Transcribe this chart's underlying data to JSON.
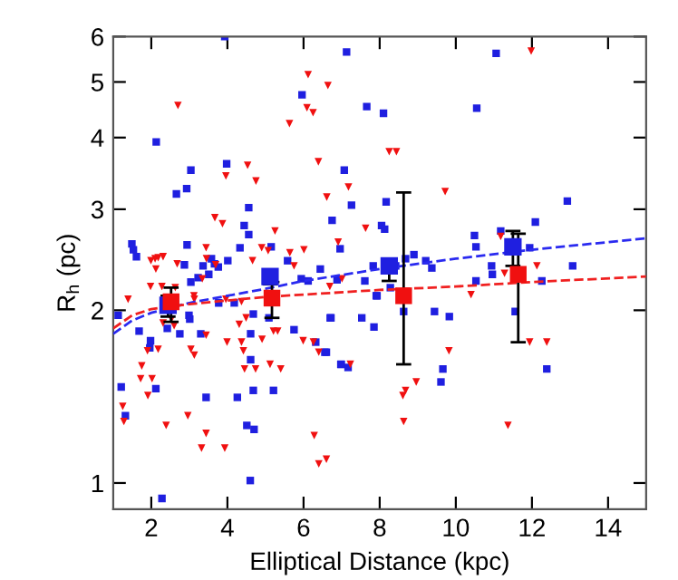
{
  "chart_data": {
    "type": "scatter",
    "xlabel": "Elliptical Distance (kpc)",
    "ylabel": "R$_{h}$ (pc)",
    "log": "y",
    "xlim": [
      1,
      15
    ],
    "ylim": [
      0.9,
      6
    ],
    "xticks": [
      2,
      4,
      6,
      8,
      10,
      12,
      14
    ],
    "yticks": [
      1,
      2,
      3,
      4,
      5,
      6
    ],
    "grid": false,
    "legend": false,
    "series": [
      {
        "marker": "square",
        "color": "#1f1fe0",
        "x": [
          3.93,
          2.13,
          3.04,
          2.66,
          2.93,
          3.98,
          4.56,
          4.44,
          4.56,
          1.49,
          1.53,
          1.61,
          2.94,
          4.01,
          4.33,
          5.15,
          2.87,
          3.36,
          3.58,
          3.66,
          3.76,
          3.51,
          3.23,
          3.04,
          5.96,
          5.58,
          6.12,
          6.44,
          6.96,
          7.07,
          6.75,
          7.13,
          5.94,
          11.06,
          7.66,
          8.1,
          10.55,
          7.26,
          8.17,
          12.93,
          8.05,
          8.13,
          10.49,
          10.53,
          11.18,
          12.09,
          11.94,
          8.9,
          9.21,
          9.37,
          8.68,
          8.42,
          7.83,
          10.94,
          13.07,
          10.96,
          6.88,
          7.61,
          10.53,
          12.26,
          8.28,
          7.91,
          6.72,
          7.53,
          7.85,
          9.44,
          9.83,
          8.63,
          11.56,
          7.93,
          6.6,
          6.98,
          7.17,
          9.66,
          9.61,
          12.39,
          1.13,
          1.68,
          1.98,
          1.96,
          2.42,
          2.75,
          2.99,
          3.01,
          3.3,
          1.21,
          1.32,
          2.12,
          3.44,
          4.26,
          4.68,
          4.61,
          4.61,
          4.68,
          5.21,
          4.51,
          4.7,
          4.6,
          2.28,
          5.75,
          6.32,
          6.56,
          6.7,
          6.99,
          3.77,
          4.18,
          5.09
        ],
        "values": [
          6.0,
          3.93,
          3.51,
          3.19,
          3.26,
          3.6,
          3.02,
          2.81,
          2.71,
          2.61,
          2.55,
          2.48,
          2.6,
          2.44,
          2.57,
          2.58,
          2.4,
          2.39,
          2.46,
          2.41,
          2.38,
          2.31,
          2.28,
          2.24,
          4.75,
          2.44,
          2.25,
          2.36,
          2.56,
          3.51,
          2.87,
          5.64,
          2.27,
          5.61,
          4.53,
          4.41,
          4.5,
          3.05,
          3.09,
          3.1,
          2.81,
          2.77,
          2.7,
          2.58,
          2.75,
          2.85,
          2.57,
          2.5,
          2.44,
          2.37,
          2.46,
          2.39,
          2.39,
          2.39,
          2.39,
          2.31,
          2.26,
          2.25,
          2.25,
          2.25,
          2.19,
          2.12,
          1.94,
          1.94,
          1.87,
          1.99,
          1.95,
          1.99,
          1.99,
          2.12,
          1.69,
          1.61,
          1.59,
          1.58,
          1.5,
          1.58,
          1.96,
          1.84,
          1.77,
          1.72,
          1.86,
          1.82,
          1.96,
          1.93,
          1.82,
          1.47,
          1.31,
          1.46,
          1.41,
          1.41,
          1.97,
          1.82,
          1.64,
          1.45,
          1.45,
          1.26,
          1.24,
          1.01,
          0.94,
          1.85,
          1.76,
          1.69,
          1.94,
          1.61,
          2.06,
          2.06,
          1.94
        ]
      },
      {
        "marker": "triangle",
        "color": "#f01010",
        "x": [
          2.7,
          6.12,
          6.64,
          6.09,
          6.25,
          5.63,
          6.39,
          4.53,
          4.75,
          3.96,
          6.61,
          3.67,
          3.87,
          5.25,
          6.91,
          1.99,
          2.1,
          2.18,
          2.31,
          2.12,
          2.68,
          3.44,
          3.45,
          3.69,
          4.66,
          4.9,
          5.07,
          5.64,
          5.75,
          6.01,
          1.98,
          2.28,
          2.63,
          3.34,
          3.12,
          1.39,
          3.96,
          6.69,
          7.01,
          11.98,
          8.25,
          8.44,
          7.18,
          9.72,
          7.63,
          11.18,
          12.13,
          11.28,
          10.4,
          11.94,
          12.39,
          9.82,
          7.23,
          8.96,
          8.68,
          8.61,
          8.63,
          11.37,
          6.6,
          2.53,
          1.75,
          1.72,
          2.02,
          1.91,
          2.18,
          1.9,
          1.25,
          1.28,
          2.39,
          2.96,
          3.04,
          3.13,
          3.44,
          3.32,
          3.93,
          3.44,
          3.99,
          4.37,
          4.42,
          4.49,
          4.31,
          4.91,
          4.45,
          4.74,
          5.12,
          5.4,
          5.21,
          5.32,
          5.99,
          6.26,
          6.4,
          6.28,
          6.4,
          2.31,
          2.6,
          3.13,
          4.37
        ],
        "values": [
          4.55,
          5.15,
          4.93,
          4.51,
          4.42,
          4.23,
          3.63,
          3.58,
          3.36,
          3.43,
          3.15,
          2.9,
          2.83,
          2.75,
          2.63,
          2.44,
          2.46,
          2.47,
          2.48,
          2.36,
          2.41,
          2.57,
          2.46,
          2.4,
          2.44,
          2.57,
          2.54,
          2.52,
          2.39,
          2.55,
          2.2,
          2.2,
          2.19,
          2.27,
          2.12,
          2.09,
          2.09,
          2.2,
          2.27,
          5.66,
          3.78,
          3.78,
          3.28,
          3.22,
          2.78,
          2.69,
          2.39,
          2.32,
          2.13,
          1.76,
          1.76,
          1.7,
          1.61,
          1.5,
          1.45,
          1.42,
          1.28,
          1.26,
          1.1,
          1.93,
          1.6,
          1.52,
          1.52,
          1.42,
          1.71,
          1.7,
          1.36,
          1.28,
          1.26,
          1.31,
          1.71,
          1.67,
          1.22,
          1.15,
          1.15,
          1.81,
          1.76,
          1.76,
          1.7,
          1.94,
          1.89,
          1.78,
          1.58,
          1.58,
          1.61,
          1.58,
          1.84,
          1.84,
          1.77,
          1.76,
          1.69,
          1.21,
          1.08,
          1.9,
          1.88,
          2.09,
          2.07
        ]
      },
      {
        "type": "line",
        "line_style": "dashed",
        "color": "#2a2af0",
        "x": [
          1,
          1.5,
          2,
          3,
          4,
          5,
          6,
          8,
          10,
          12,
          15
        ],
        "values": [
          1.82,
          1.92,
          1.98,
          2.06,
          2.12,
          2.18,
          2.25,
          2.36,
          2.46,
          2.55,
          2.67
        ]
      },
      {
        "type": "line",
        "line_style": "dashed",
        "color": "#f02020",
        "x": [
          1,
          1.5,
          2,
          3,
          4,
          5,
          6,
          8,
          10,
          12,
          15
        ],
        "values": [
          1.86,
          1.96,
          2.01,
          2.05,
          2.08,
          2.11,
          2.13,
          2.17,
          2.2,
          2.24,
          2.29
        ]
      },
      {
        "marker": "square",
        "color": "#1f1fe0",
        "x": [
          2.44,
          5.12,
          8.25,
          11.5
        ],
        "values": [
          2.04,
          2.29,
          2.39,
          2.58
        ],
        "errors": [
          [
            1.95,
            2.12
          ],
          [
            2.22,
            2.35
          ],
          [
            2.25,
            2.46
          ],
          [
            2.39,
            2.75
          ]
        ]
      },
      {
        "marker": "square",
        "color": "#f01010",
        "x": [
          2.52,
          5.17,
          8.63,
          11.64
        ],
        "values": [
          2.07,
          2.1,
          2.12,
          2.31
        ],
        "errors": [
          [
            1.91,
            2.19
          ],
          [
            1.94,
            2.24
          ],
          [
            1.61,
            3.21
          ],
          [
            1.76,
            2.72
          ]
        ]
      }
    ]
  }
}
